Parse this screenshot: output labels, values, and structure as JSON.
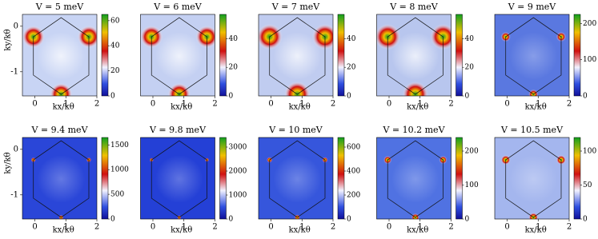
{
  "chart_data": [
    {
      "type": "heatmap",
      "title": "V = 5 meV",
      "xlabel": "kx/kθ",
      "ylabel": "ky/kθ",
      "xlim": [
        -0.4,
        2
      ],
      "xticks": [
        0,
        1,
        2
      ],
      "ylim": [
        -1.53,
        0.26
      ],
      "yticks": [
        0,
        -1
      ],
      "clim": [
        0,
        65
      ],
      "cticks": [
        0,
        20,
        40,
        60
      ],
      "color": "#c8d4f4"
    },
    {
      "type": "heatmap",
      "title": "V = 6 meV",
      "xlabel": "kx/kθ",
      "xlim": [
        -0.4,
        2
      ],
      "xticks": [
        0,
        1,
        2
      ],
      "clim": [
        0,
        57
      ],
      "cticks": [
        0,
        20,
        40
      ],
      "color": "#c4d0f2"
    },
    {
      "type": "heatmap",
      "title": "V = 7 meV",
      "xlabel": "kx/kθ",
      "xlim": [
        -0.4,
        2
      ],
      "xticks": [
        0,
        1,
        2
      ],
      "clim": [
        0,
        57
      ],
      "cticks": [
        0,
        20,
        40
      ],
      "color": "#c0ccf0"
    },
    {
      "type": "heatmap",
      "title": "V = 8 meV",
      "xlabel": "kx/kθ",
      "xlim": [
        -0.4,
        2
      ],
      "xticks": [
        0,
        1,
        2
      ],
      "clim": [
        0,
        57
      ],
      "cticks": [
        0,
        20,
        40
      ],
      "color": "#b8c6ee"
    },
    {
      "type": "heatmap",
      "title": "V = 9 meV",
      "xlabel": "kx/kθ",
      "xlim": [
        -0.4,
        2
      ],
      "xticks": [
        0,
        1,
        2
      ],
      "clim": [
        0,
        225
      ],
      "cticks": [
        0,
        100,
        200
      ],
      "color": "#5a78e0"
    },
    {
      "type": "heatmap",
      "title": "V = 9.4 meV",
      "xlabel": "kx/kθ",
      "ylabel": "ky/kθ",
      "xlim": [
        -0.4,
        2
      ],
      "xticks": [
        0,
        1,
        2
      ],
      "ylim": [
        -1.53,
        0.26
      ],
      "yticks": [
        0,
        -1
      ],
      "clim": [
        0,
        1650
      ],
      "cticks": [
        0,
        500,
        1000,
        1500
      ],
      "color": "#2a46d8"
    },
    {
      "type": "heatmap",
      "title": "V = 9.8 meV",
      "xlabel": "kx/kθ",
      "xlim": [
        -0.4,
        2
      ],
      "xticks": [
        0,
        1,
        2
      ],
      "clim": [
        0,
        3400
      ],
      "cticks": [
        0,
        1000,
        2000,
        3000
      ],
      "color": "#2440d6"
    },
    {
      "type": "heatmap",
      "title": "V = 10 meV",
      "xlabel": "kx/kθ",
      "xlim": [
        -0.4,
        2
      ],
      "xticks": [
        0,
        1,
        2
      ],
      "clim": [
        0,
        680
      ],
      "cticks": [
        0,
        200,
        400,
        600
      ],
      "color": "#3656dc"
    },
    {
      "type": "heatmap",
      "title": "V = 10.2 meV",
      "xlabel": "kx/kθ",
      "xlim": [
        -0.4,
        2
      ],
      "xticks": [
        0,
        1,
        2
      ],
      "clim": [
        0,
        240
      ],
      "cticks": [
        0,
        100,
        200
      ],
      "color": "#5072e2"
    },
    {
      "type": "heatmap",
      "title": "V = 10.5 meV",
      "xlabel": "kx/kθ",
      "xlim": [
        -0.4,
        2
      ],
      "xticks": [
        0,
        1,
        2
      ],
      "clim": [
        0,
        120
      ],
      "cticks": [
        0,
        50,
        100
      ],
      "color": "#a4b6ee"
    }
  ]
}
